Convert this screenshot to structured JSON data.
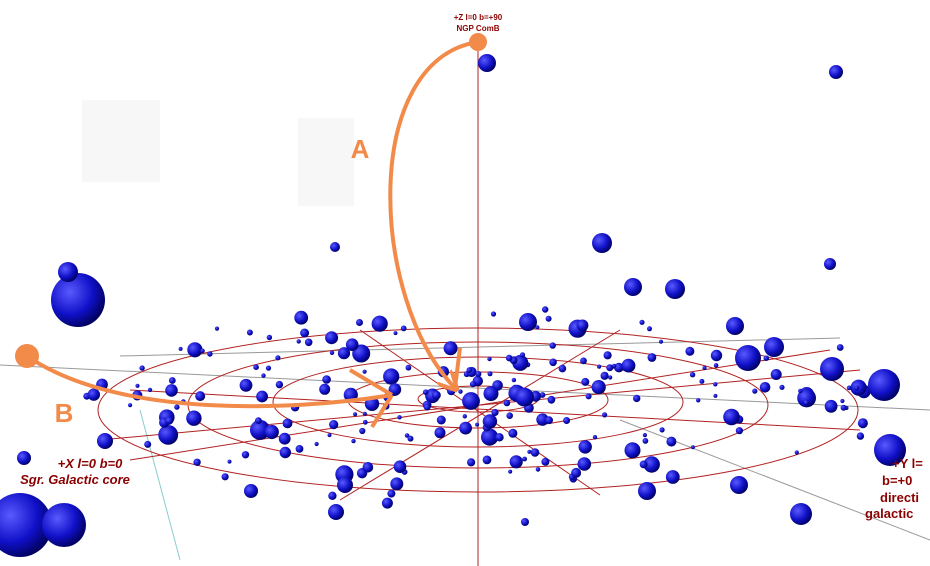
{
  "labels": {
    "z_axis": "+Z l=0 b=+90",
    "z_name": "NGP ComB",
    "arrow_a": "A",
    "arrow_b": "B",
    "x_axis": "+X l=0 b=0",
    "x_name": "Sgr. Galactic core",
    "y_axis": "+Y l=",
    "y_line2": "b=+0",
    "y_line3": "directi",
    "y_line4": "galactic"
  }
}
